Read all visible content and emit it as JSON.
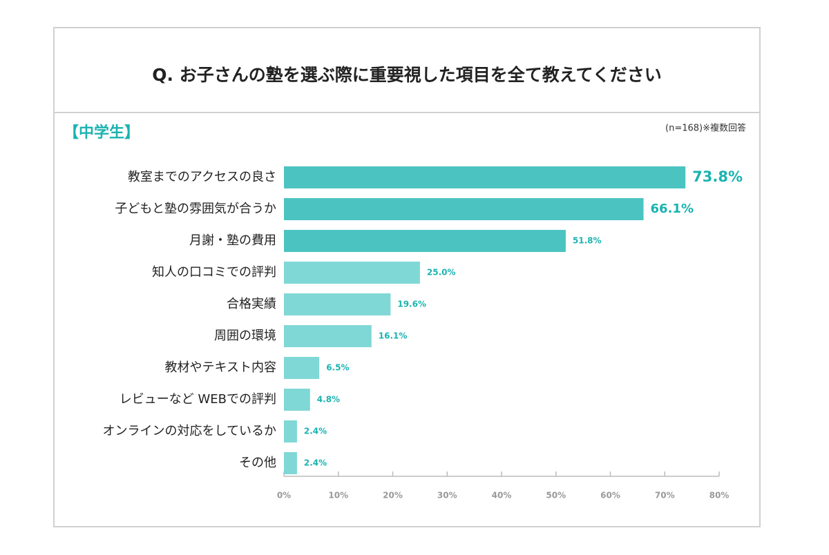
{
  "chart_data": {
    "type": "hbar",
    "title": "Q. お子さんの塾を選ぶ際に重要視した項目を全て教えてください",
    "subtitle": "【中学生】",
    "note": "(n=168)※複数回答",
    "categories": [
      "教室までのアクセスの良さ",
      "子どもと塾の雰囲気が合うか",
      "月謝・塾の費用",
      "知人の口コミでの評判",
      "合格実績",
      "周囲の環境",
      "教材やテキスト内容",
      "レビューなど WEBでの評判",
      "オンラインの対応をしているか",
      "その他"
    ],
    "values": [
      73.8,
      66.1,
      51.8,
      25.0,
      19.6,
      16.1,
      6.5,
      4.8,
      2.4,
      2.4
    ],
    "value_labels": [
      "73.8%",
      "66.1%",
      "51.8%",
      "25.0%",
      "19.6%",
      "16.1%",
      "6.5%",
      "4.8%",
      "2.4%",
      "2.4%"
    ],
    "colors": [
      "#4bc4c1",
      "#4bc4c1",
      "#4bc4c1",
      "#7fd8d5",
      "#7fd8d5",
      "#7fd8d5",
      "#7fd8d5",
      "#7fd8d5",
      "#7fd8d5",
      "#7fd8d5"
    ],
    "label_color": "#1ab3b0",
    "xlim": [
      0,
      80
    ],
    "xticks": [
      {
        "value": 0,
        "label": "0%"
      },
      {
        "value": 10,
        "label": "10%"
      },
      {
        "value": 20,
        "label": "20%"
      },
      {
        "value": 30,
        "label": "30%"
      },
      {
        "value": 40,
        "label": "40%"
      },
      {
        "value": 50,
        "label": "50%"
      },
      {
        "value": 60,
        "label": "60%"
      },
      {
        "value": 70,
        "label": "70%"
      },
      {
        "value": 80,
        "label": "80%"
      }
    ]
  }
}
